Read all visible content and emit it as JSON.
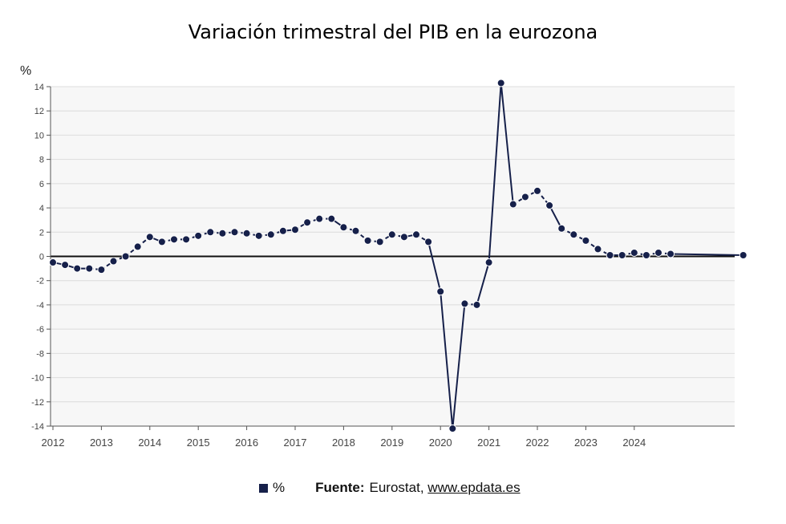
{
  "chart_data": {
    "type": "line",
    "title": "Variación trimestral del PIB en la eurozona",
    "ylabel": "%",
    "xlabel": "",
    "ylim": [
      -14,
      14
    ],
    "y_ticks": [
      14,
      12,
      10,
      8,
      6,
      4,
      2,
      0,
      -2,
      -4,
      -6,
      -8,
      -10,
      -12,
      -14
    ],
    "x_ticks": [
      "2012",
      "2013",
      "2014",
      "2015",
      "2016",
      "2017",
      "2018",
      "2019",
      "2020",
      "2021",
      "2022",
      "2023",
      "2024"
    ],
    "grid": true,
    "legend_position": "bottom",
    "series": [
      {
        "name": "%",
        "color": "#16204a",
        "x": [
          "2012-Q1",
          "2012-Q2",
          "2012-Q3",
          "2012-Q4",
          "2013-Q1",
          "2013-Q2",
          "2013-Q3",
          "2013-Q4",
          "2014-Q1",
          "2014-Q2",
          "2014-Q3",
          "2014-Q4",
          "2015-Q1",
          "2015-Q2",
          "2015-Q3",
          "2015-Q4",
          "2016-Q1",
          "2016-Q2",
          "2016-Q3",
          "2016-Q4",
          "2017-Q1",
          "2017-Q2",
          "2017-Q3",
          "2017-Q4",
          "2018-Q1",
          "2018-Q2",
          "2018-Q3",
          "2018-Q4",
          "2019-Q1",
          "2019-Q2",
          "2019-Q3",
          "2019-Q4",
          "2020-Q1",
          "2020-Q2",
          "2020-Q3",
          "2020-Q4",
          "2021-Q1",
          "2021-Q2",
          "2021-Q3",
          "2021-Q4",
          "2022-Q1",
          "2022-Q2",
          "2022-Q3",
          "2022-Q4",
          "2023-Q1",
          "2023-Q2",
          "2023-Q3",
          "2023-Q4",
          "2024-Q1",
          "2024-Q2",
          "2024-Q3",
          "2024-Q4",
          "2026-Q2"
        ],
        "values": [
          -0.5,
          -0.7,
          -1.0,
          -1.0,
          -1.1,
          -0.4,
          0.0,
          0.8,
          1.6,
          1.2,
          1.4,
          1.4,
          1.7,
          2.0,
          1.9,
          2.0,
          1.9,
          1.7,
          1.8,
          2.1,
          2.2,
          2.8,
          3.1,
          3.1,
          2.4,
          2.1,
          1.3,
          1.2,
          1.8,
          1.6,
          1.8,
          1.2,
          -2.9,
          -14.2,
          -3.9,
          -4.0,
          -0.5,
          14.3,
          4.3,
          4.9,
          5.4,
          4.2,
          2.3,
          1.8,
          1.3,
          0.6,
          0.1,
          0.1,
          0.3,
          0.1,
          0.3,
          0.2,
          0.1
        ],
        "dashed_segments": [
          [
            3,
            8
          ],
          [
            9,
            19
          ],
          [
            20,
            23
          ],
          [
            24,
            29
          ],
          [
            30,
            31
          ],
          [
            34,
            35
          ],
          [
            38,
            41
          ],
          [
            42,
            46
          ],
          [
            47,
            51
          ]
        ]
      }
    ]
  },
  "legend": {
    "label": "%"
  },
  "source": {
    "label": "Fuente:",
    "org": "Eurostat,",
    "url": "www.epdata.es"
  }
}
